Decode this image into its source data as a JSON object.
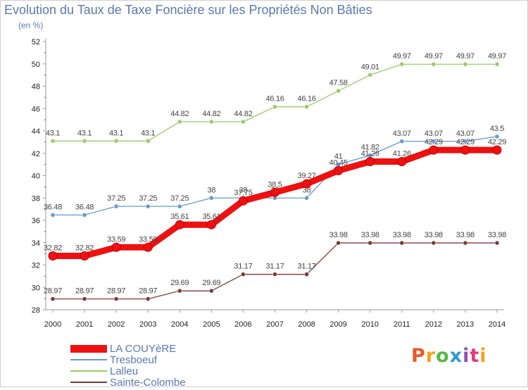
{
  "header": {
    "title": "Evolution du Taux de Taxe Foncière sur les Propriétés Non Bâties",
    "subtitle": "(en %)"
  },
  "logo": {
    "text": "Proxiti",
    "colors": [
      "#e8592a",
      "#f2a31b",
      "#57b847",
      "#2d9ad6",
      "#8f4fb3",
      "#e03a7a",
      "#f2a31b"
    ]
  },
  "colors": {
    "axis": "#9a9a9a",
    "grid_minor_tick": "#cc3333",
    "value_label": "#444444",
    "tick_label": "#222222"
  },
  "chart_data": {
    "type": "line",
    "x": [
      2000,
      2001,
      2002,
      2003,
      2004,
      2005,
      2006,
      2007,
      2008,
      2009,
      2010,
      2011,
      2012,
      2013,
      2014
    ],
    "ylim": [
      28,
      52
    ],
    "yticks": [
      28,
      30,
      32,
      34,
      36,
      38,
      40,
      42,
      44,
      46,
      48,
      50,
      52
    ],
    "grid": false,
    "legend_position": "bottom-left",
    "series": [
      {
        "name": "LA COUYèRE",
        "color": "#ee1111",
        "values": [
          32.82,
          32.82,
          33.59,
          33.59,
          35.61,
          35.61,
          37.75,
          38.5,
          39.27,
          40.45,
          41.26,
          41.26,
          42.29,
          42.29,
          42.29
        ],
        "labels": [
          "32.82",
          "32.82",
          "33.59",
          "33.59",
          "35.61",
          "35.61",
          "37.75",
          "38.5",
          "39.27",
          "40.45",
          "41.26",
          "41.26",
          "42.29",
          "42.29",
          "42.29"
        ]
      },
      {
        "name": "Tresboeuf",
        "color": "#6699cc",
        "values": [
          36.48,
          36.48,
          37.25,
          37.25,
          37.25,
          38,
          38,
          38,
          38,
          41,
          41.82,
          43.07,
          43.07,
          43.07,
          43.5
        ],
        "labels": [
          "36.48",
          "36.48",
          "37.25",
          "37.25",
          "37.25",
          "38",
          "38",
          "38",
          "38",
          "41",
          "41.82",
          "43.07",
          "43.07",
          "43.07",
          "43.5"
        ]
      },
      {
        "name": "Lalleu",
        "color": "#99cc66",
        "values": [
          43.1,
          43.1,
          43.1,
          43.1,
          44.82,
          44.82,
          44.82,
          46.16,
          46.16,
          47.58,
          49.01,
          49.97,
          49.97,
          49.97,
          49.97
        ],
        "labels": [
          "43.1",
          "43.1",
          "43.1",
          "43.1",
          "44.82",
          "44.82",
          "44.82",
          "46.16",
          "46.16",
          "47.58",
          "49.01",
          "49.97",
          "49.97",
          "49.97",
          "49.97"
        ]
      },
      {
        "name": "Sainte-Colombe",
        "color": "#7a3a3a",
        "values": [
          28.97,
          28.97,
          28.97,
          28.97,
          29.69,
          29.69,
          31.17,
          31.17,
          31.17,
          33.98,
          33.98,
          33.98,
          33.98,
          33.98,
          33.98
        ],
        "labels": [
          "28.97",
          "28.97",
          "28.97",
          "28.97",
          "29.69",
          "29.69",
          "31.17",
          "31.17",
          "31.17",
          "33.98",
          "33.98",
          "33.98",
          "33.98",
          "33.98",
          "33.98"
        ]
      }
    ]
  }
}
